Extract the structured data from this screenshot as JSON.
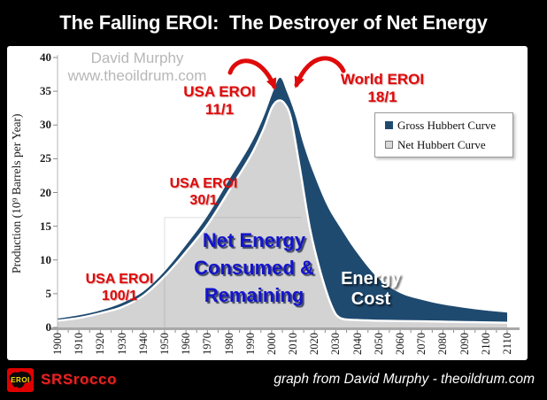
{
  "title": "The Falling EROI:  The Destroyer of Net Energy",
  "watermark": {
    "line1": "David Murphy",
    "line2": "www.theoildrum.com"
  },
  "footer": {
    "logo_text": "EROI",
    "brand": "SRSrocco",
    "credit": "graph from David Murphy - theoildrum.com"
  },
  "chart_data": {
    "type": "area",
    "title": "The Falling EROI:  The Destroyer of Net Energy",
    "xlabel": "Year",
    "ylabel": "Production (10⁹ Barrels per Year)",
    "xlim": [
      1900,
      2110
    ],
    "ylim": [
      0,
      40
    ],
    "grid": false,
    "legend_position": "upper right",
    "x_ticks": [
      1900,
      1910,
      1920,
      1930,
      1940,
      1950,
      1960,
      1970,
      1980,
      1990,
      2000,
      2010,
      2020,
      2030,
      2040,
      2050,
      2060,
      2070,
      2080,
      2090,
      2100,
      2110
    ],
    "y_ticks": [
      0,
      5,
      10,
      15,
      20,
      25,
      30,
      35,
      40
    ],
    "series": [
      {
        "name": "Gross Hubbert Curve",
        "color": "#1F4A70",
        "x": [
          1900,
          1910,
          1920,
          1930,
          1940,
          1950,
          1960,
          1970,
          1980,
          1990,
          1996,
          2001,
          2004,
          2007,
          2011,
          2015,
          2020,
          2026,
          2032,
          2040,
          2050,
          2060,
          2070,
          2080,
          2090,
          2100,
          2110
        ],
        "values": [
          1.3,
          1.8,
          2.5,
          3.6,
          5.3,
          8.3,
          12.2,
          16.5,
          21.8,
          27.0,
          31.0,
          35.2,
          37.0,
          35.0,
          31.5,
          27.0,
          22.5,
          18.0,
          14.8,
          11.0,
          7.2,
          5.1,
          4.1,
          3.4,
          2.9,
          2.5,
          2.2
        ]
      },
      {
        "name": "Net Hubbert Curve",
        "color": "#D3D3D3",
        "x": [
          1900,
          1910,
          1920,
          1930,
          1940,
          1950,
          1960,
          1970,
          1980,
          1990,
          1996,
          2000,
          2003,
          2006,
          2009,
          2013,
          2018,
          2023,
          2028,
          2032,
          2040,
          2050,
          2060,
          2070,
          2080,
          2090,
          2100,
          2110
        ],
        "values": [
          1.0,
          1.4,
          2.1,
          3.0,
          4.7,
          7.6,
          11.2,
          15.2,
          20.2,
          25.3,
          29.2,
          32.5,
          33.6,
          33.2,
          31.0,
          24.0,
          14.5,
          8.0,
          3.2,
          1.4,
          1.1,
          1.0,
          0.95,
          0.9,
          0.85,
          0.8,
          0.75,
          0.7
        ]
      }
    ],
    "annotations": {
      "usa_eroi_11": {
        "line1": "USA EROI",
        "line2": "11/1",
        "color": "#DF0B0B",
        "x": 1976,
        "y": 35
      },
      "world_eroi_18": {
        "line1": "World EROI",
        "line2": "18/1",
        "color": "#DF0B0B",
        "x": 2055,
        "y": 36
      },
      "usa_eroi_30": {
        "line1": "USA EROI",
        "line2": "30/1",
        "color": "#DF0B0B",
        "x": 1967,
        "y": 21
      },
      "usa_eroi_100": {
        "line1": "USA EROI",
        "line2": "100/1",
        "color": "#DF0B0B",
        "x": 1928,
        "y": 6
      },
      "net_energy": {
        "line1": "Net Energy",
        "line2": "Consumed &",
        "line3": "Remaining",
        "color": "#1414CC",
        "x": 1993,
        "y": 13
      },
      "energy_cost": {
        "line1": "Energy",
        "line2": "Cost",
        "color": "#FFFFFF",
        "x": 2047,
        "y": 7
      }
    }
  }
}
